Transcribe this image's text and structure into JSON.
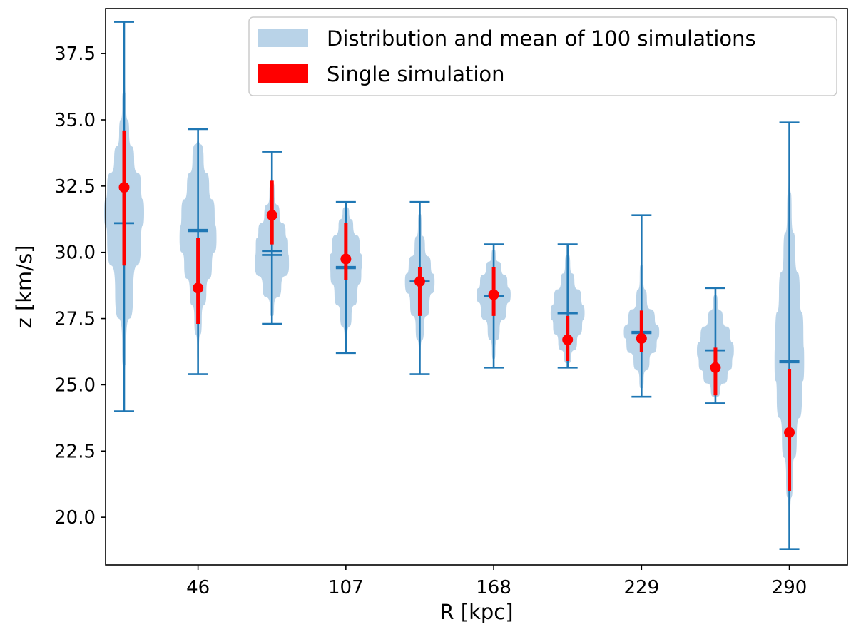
{
  "chart_data": {
    "type": "violin",
    "xlabel": "R [kpc]",
    "ylabel": "z [km/s]",
    "ylim": [
      18.2,
      39.2
    ],
    "xlim": [
      0,
      9.4
    ],
    "x_tick_labels": [
      {
        "pos": 1,
        "label": "46"
      },
      {
        "pos": 3,
        "label": "107"
      },
      {
        "pos": 5,
        "label": "168"
      },
      {
        "pos": 7,
        "label": "229"
      },
      {
        "pos": 9,
        "label": "290"
      }
    ],
    "y_ticks": [
      {
        "value": 20.0,
        "label": "20.0"
      },
      {
        "value": 22.5,
        "label": "22.5"
      },
      {
        "value": 25.0,
        "label": "25.0"
      },
      {
        "value": 27.5,
        "label": "27.5"
      },
      {
        "value": 30.0,
        "label": "30.0"
      },
      {
        "value": 32.5,
        "label": "32.5"
      },
      {
        "value": 35.0,
        "label": "35.0"
      },
      {
        "value": 37.5,
        "label": "37.5"
      }
    ],
    "legend": {
      "placement": "top-right",
      "entries": [
        {
          "label": "Distribution and mean of 100 simulations",
          "color": "#b9d3e8"
        },
        {
          "label": "Single simulation",
          "color": "#ff0000"
        }
      ]
    },
    "colors": {
      "violin_fill": "#b9d3e8",
      "violin_lines": "#1f77b4",
      "single": "#ff0000"
    },
    "violins": [
      {
        "pos": 0,
        "min": 24.0,
        "max": 38.7,
        "mean": 31.1,
        "median": 31.1,
        "halfwidth": 0.27,
        "shape": [
          [
            24.0,
            0.0
          ],
          [
            25.0,
            0.03
          ],
          [
            26.5,
            0.1
          ],
          [
            28.5,
            0.45
          ],
          [
            30.5,
            0.85
          ],
          [
            31.5,
            1.0
          ],
          [
            32.5,
            0.85
          ],
          [
            33.5,
            0.5
          ],
          [
            34.5,
            0.25
          ],
          [
            35.5,
            0.1
          ],
          [
            36.5,
            0.04
          ],
          [
            38.7,
            0.0
          ]
        ],
        "single": {
          "value": 32.45,
          "low": 29.5,
          "high": 34.6
        }
      },
      {
        "pos": 1,
        "min": 25.4,
        "max": 34.65,
        "mean": 30.8,
        "median": 30.85,
        "halfwidth": 0.25,
        "shape": [
          [
            25.4,
            0.0
          ],
          [
            26.3,
            0.05
          ],
          [
            27.5,
            0.2
          ],
          [
            28.5,
            0.45
          ],
          [
            29.5,
            0.75
          ],
          [
            30.5,
            1.0
          ],
          [
            31.5,
            0.9
          ],
          [
            32.5,
            0.6
          ],
          [
            33.5,
            0.3
          ],
          [
            34.65,
            0.0
          ]
        ],
        "single": {
          "value": 28.65,
          "low": 27.3,
          "high": 30.55
        }
      },
      {
        "pos": 2,
        "min": 27.3,
        "max": 33.8,
        "mean": 30.05,
        "median": 29.9,
        "halfwidth": 0.23,
        "shape": [
          [
            27.3,
            0.0
          ],
          [
            27.9,
            0.12
          ],
          [
            28.7,
            0.55
          ],
          [
            29.5,
            1.0
          ],
          [
            30.3,
            0.95
          ],
          [
            30.8,
            0.8
          ],
          [
            31.4,
            0.45
          ],
          [
            32.2,
            0.15
          ],
          [
            33.0,
            0.05
          ],
          [
            33.8,
            0.0
          ]
        ],
        "single": {
          "value": 31.4,
          "low": 30.3,
          "high": 32.7
        }
      },
      {
        "pos": 3,
        "min": 26.2,
        "max": 31.9,
        "mean": 29.45,
        "median": 29.4,
        "halfwidth": 0.22,
        "shape": [
          [
            26.2,
            0.0
          ],
          [
            26.8,
            0.08
          ],
          [
            27.6,
            0.35
          ],
          [
            28.4,
            0.7
          ],
          [
            29.2,
            0.95
          ],
          [
            29.6,
            1.0
          ],
          [
            30.3,
            0.85
          ],
          [
            31.0,
            0.45
          ],
          [
            31.5,
            0.2
          ],
          [
            31.9,
            0.0
          ]
        ],
        "single": {
          "value": 29.75,
          "low": 28.95,
          "high": 31.1
        }
      },
      {
        "pos": 4,
        "min": 25.4,
        "max": 31.9,
        "mean": 28.9,
        "median": 28.9,
        "halfwidth": 0.2,
        "shape": [
          [
            25.4,
            0.0
          ],
          [
            26.2,
            0.06
          ],
          [
            27.2,
            0.28
          ],
          [
            28.0,
            0.65
          ],
          [
            28.9,
            1.0
          ],
          [
            29.5,
            0.75
          ],
          [
            30.2,
            0.35
          ],
          [
            31.0,
            0.12
          ],
          [
            31.9,
            0.0
          ]
        ],
        "single": {
          "value": 28.9,
          "low": 27.6,
          "high": 29.45
        }
      },
      {
        "pos": 5,
        "min": 25.65,
        "max": 30.3,
        "mean": 28.35,
        "median": 28.35,
        "halfwidth": 0.23,
        "shape": [
          [
            25.65,
            0.0
          ],
          [
            26.3,
            0.1
          ],
          [
            27.1,
            0.35
          ],
          [
            27.8,
            0.75
          ],
          [
            28.4,
            1.0
          ],
          [
            28.9,
            0.8
          ],
          [
            29.4,
            0.45
          ],
          [
            29.9,
            0.12
          ],
          [
            30.3,
            0.0
          ]
        ],
        "single": {
          "value": 28.4,
          "low": 27.6,
          "high": 29.45
        }
      },
      {
        "pos": 6,
        "min": 25.65,
        "max": 30.3,
        "mean": 27.7,
        "median": 27.7,
        "halfwidth": 0.23,
        "shape": [
          [
            25.65,
            0.0
          ],
          [
            26.0,
            0.2
          ],
          [
            26.6,
            0.55
          ],
          [
            27.2,
            0.85
          ],
          [
            27.7,
            1.0
          ],
          [
            28.3,
            0.8
          ],
          [
            28.9,
            0.4
          ],
          [
            29.5,
            0.15
          ],
          [
            30.3,
            0.0
          ]
        ],
        "single": {
          "value": 26.7,
          "low": 25.9,
          "high": 27.6
        }
      },
      {
        "pos": 7,
        "min": 24.55,
        "max": 31.4,
        "mean": 26.95,
        "median": 27.0,
        "halfwidth": 0.24,
        "shape": [
          [
            24.55,
            0.0
          ],
          [
            25.2,
            0.12
          ],
          [
            25.9,
            0.45
          ],
          [
            26.5,
            0.85
          ],
          [
            27.0,
            1.0
          ],
          [
            27.5,
            0.75
          ],
          [
            28.2,
            0.3
          ],
          [
            29.0,
            0.1
          ],
          [
            30.0,
            0.03
          ],
          [
            31.4,
            0.0
          ]
        ],
        "single": {
          "value": 26.75,
          "low": 26.25,
          "high": 27.8
        }
      },
      {
        "pos": 8,
        "min": 24.3,
        "max": 28.65,
        "mean": 26.3,
        "median": 26.3,
        "halfwidth": 0.25,
        "shape": [
          [
            24.3,
            0.0
          ],
          [
            24.8,
            0.25
          ],
          [
            25.3,
            0.65
          ],
          [
            25.8,
            0.9
          ],
          [
            26.3,
            1.0
          ],
          [
            26.9,
            0.8
          ],
          [
            27.5,
            0.4
          ],
          [
            28.1,
            0.12
          ],
          [
            28.65,
            0.0
          ]
        ],
        "single": {
          "value": 25.65,
          "low": 24.6,
          "high": 26.4
        }
      },
      {
        "pos": 9,
        "min": 18.8,
        "max": 34.9,
        "mean": 25.85,
        "median": 25.9,
        "halfwidth": 0.2,
        "shape": [
          [
            18.8,
            0.0
          ],
          [
            20.0,
            0.06
          ],
          [
            21.5,
            0.22
          ],
          [
            23.0,
            0.5
          ],
          [
            24.5,
            0.85
          ],
          [
            25.8,
            1.0
          ],
          [
            27.0,
            0.95
          ],
          [
            28.5,
            0.7
          ],
          [
            30.0,
            0.4
          ],
          [
            31.5,
            0.15
          ],
          [
            33.0,
            0.05
          ],
          [
            34.9,
            0.0
          ]
        ],
        "single": {
          "value": 23.2,
          "low": 21.0,
          "high": 25.6
        }
      }
    ]
  }
}
